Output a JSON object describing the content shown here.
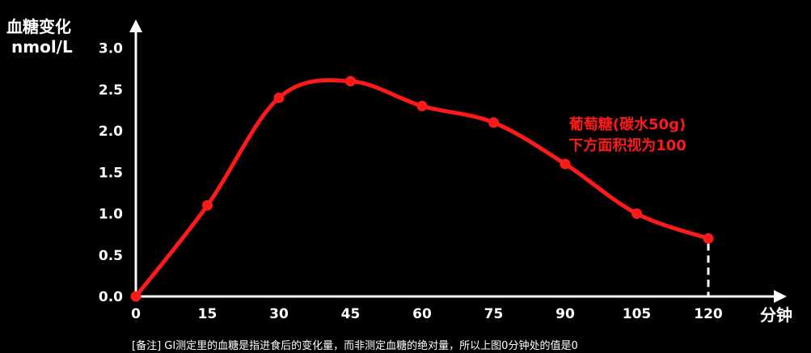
{
  "colors": {
    "background": "#000000",
    "axis": "#ffffff",
    "series": "#ff1a1a"
  },
  "chart_data": {
    "type": "line",
    "title": "",
    "ylabel_line1": "血糖变化",
    "ylabel_line2": "nmol/L",
    "xlabel": "分钟",
    "x": [
      0,
      15,
      30,
      45,
      60,
      75,
      90,
      105,
      120
    ],
    "x_ticks": [
      "0",
      "15",
      "30",
      "45",
      "60",
      "75",
      "90",
      "105",
      "120"
    ],
    "y_ticks": [
      "0.0",
      "0.5",
      "1.0",
      "1.5",
      "2.0",
      "2.5",
      "3.0"
    ],
    "xlim": [
      0,
      135
    ],
    "ylim": [
      0,
      3.0
    ],
    "grid": false,
    "series": [
      {
        "label_line1": "葡萄糖(碳水50g)",
        "label_line2": "下方面积视为100",
        "values": [
          0,
          1.1,
          2.4,
          2.6,
          2.3,
          2.1,
          1.6,
          1.0,
          0.7
        ]
      }
    ],
    "annotations": {
      "footnote": "[备注] GI测定里的血糖是指进食后的变化量，而非测定血糖的绝对量，所以上图0分钟处的值是0"
    }
  }
}
